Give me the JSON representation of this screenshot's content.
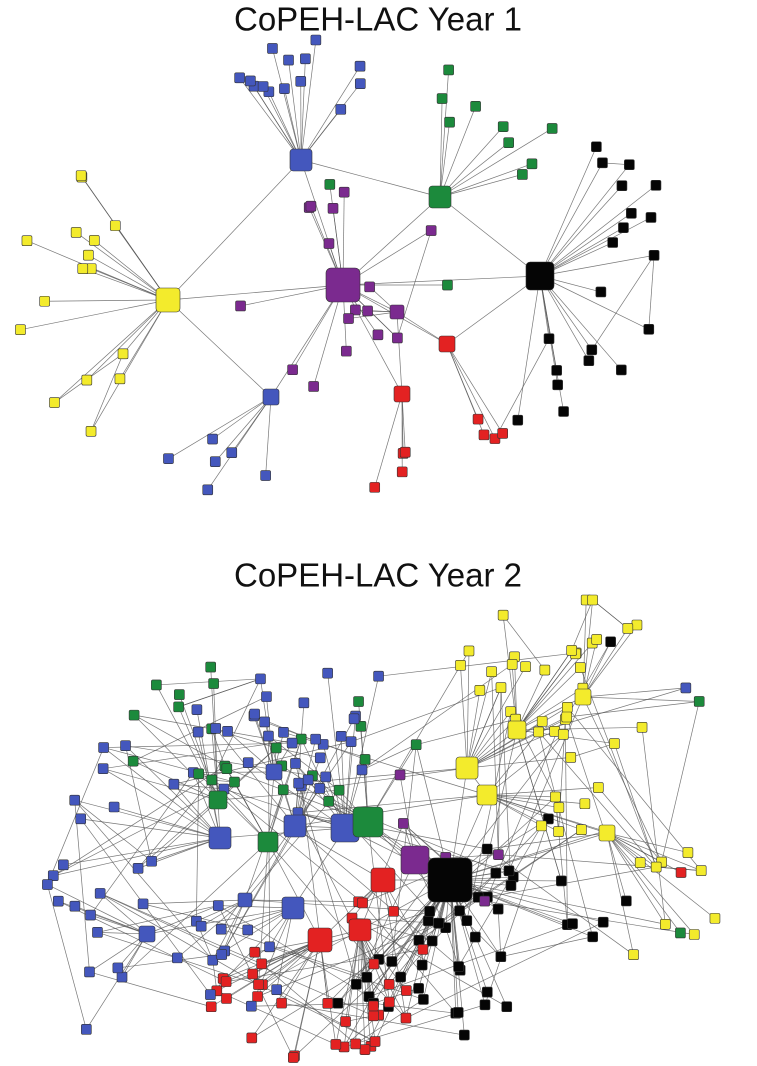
{
  "diagrams": [
    {
      "title": "CoPEH-LAC Year 1"
    },
    {
      "title": "CoPEH-LAC Year 2"
    }
  ]
}
